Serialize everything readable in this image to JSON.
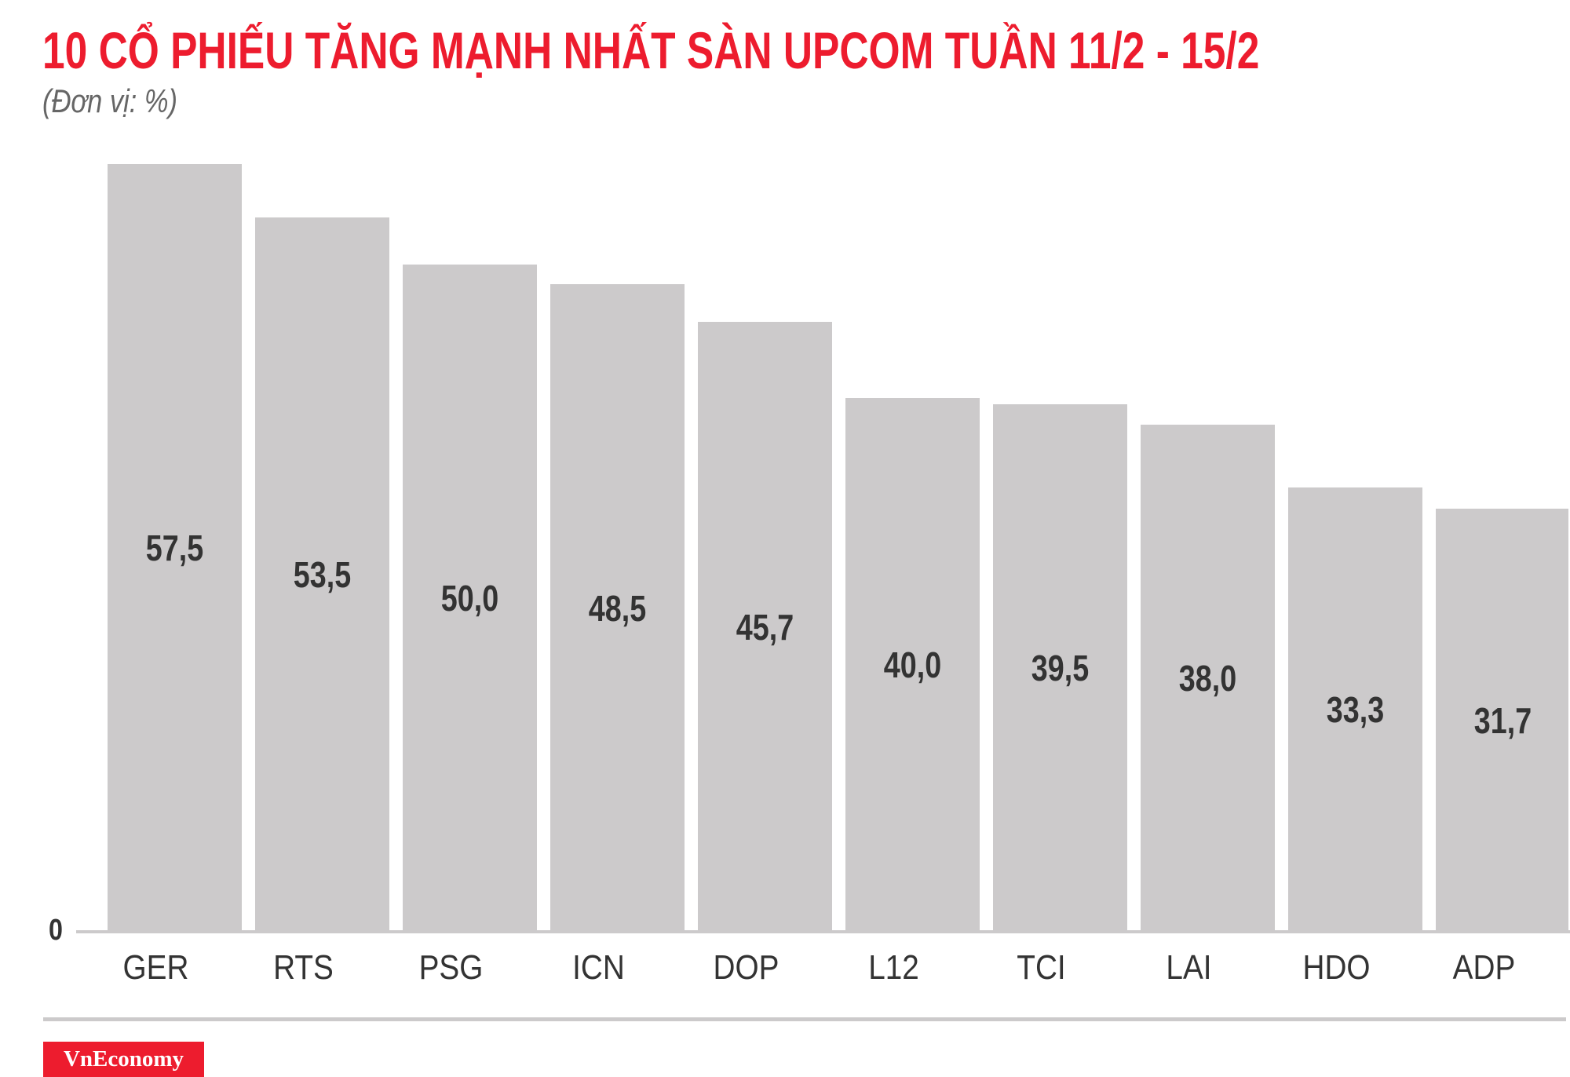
{
  "header": {
    "title": "10 CỔ PHIẾU TĂNG MẠNH NHẤT SÀN UPCOM TUẦN 11/2 - 15/2",
    "subtitle": "(Đơn vị: %)"
  },
  "axis": {
    "zero_label": "0"
  },
  "bars": [
    {
      "ticker": "GER",
      "label": "57,5",
      "value": 57.5
    },
    {
      "ticker": "RTS",
      "label": "53,5",
      "value": 53.5
    },
    {
      "ticker": "PSG",
      "label": "50,0",
      "value": 50.0
    },
    {
      "ticker": "ICN",
      "label": "48,5",
      "value": 48.5
    },
    {
      "ticker": "DOP",
      "label": "45,7",
      "value": 45.7
    },
    {
      "ticker": "L12",
      "label": "40,0",
      "value": 40.0
    },
    {
      "ticker": "TCI",
      "label": "39,5",
      "value": 39.5
    },
    {
      "ticker": "LAI",
      "label": "38,0",
      "value": 38.0
    },
    {
      "ticker": "HDO",
      "label": "33,3",
      "value": 33.3
    },
    {
      "ticker": "ADP",
      "label": "31,7",
      "value": 31.7
    }
  ],
  "footer": {
    "logo_text": "VnEconomy"
  },
  "colors": {
    "title": "#ED1C2E",
    "bar": "#CCCACB",
    "value_text": "#333333",
    "logo_bg": "#ED1C2E"
  },
  "chart_data": {
    "type": "bar",
    "title": "10 CỔ PHIẾU TĂNG MẠNH NHẤT SÀN UPCOM TUẦN 11/2 - 15/2",
    "subtitle": "(Đơn vị: %)",
    "categories": [
      "GER",
      "RTS",
      "PSG",
      "ICN",
      "DOP",
      "L12",
      "TCI",
      "LAI",
      "HDO",
      "ADP"
    ],
    "values": [
      57.5,
      53.5,
      50.0,
      48.5,
      45.7,
      40.0,
      39.5,
      38.0,
      33.3,
      31.7
    ],
    "value_labels": [
      "57,5",
      "53,5",
      "50,0",
      "48,5",
      "45,7",
      "40,0",
      "39,5",
      "38,0",
      "33,3",
      "31,7"
    ],
    "xlabel": "",
    "ylabel": "%",
    "y_tick_labels": [
      "0"
    ],
    "ylim": [
      0,
      60
    ],
    "grid": false,
    "legend": null,
    "source": "VnEconomy"
  }
}
